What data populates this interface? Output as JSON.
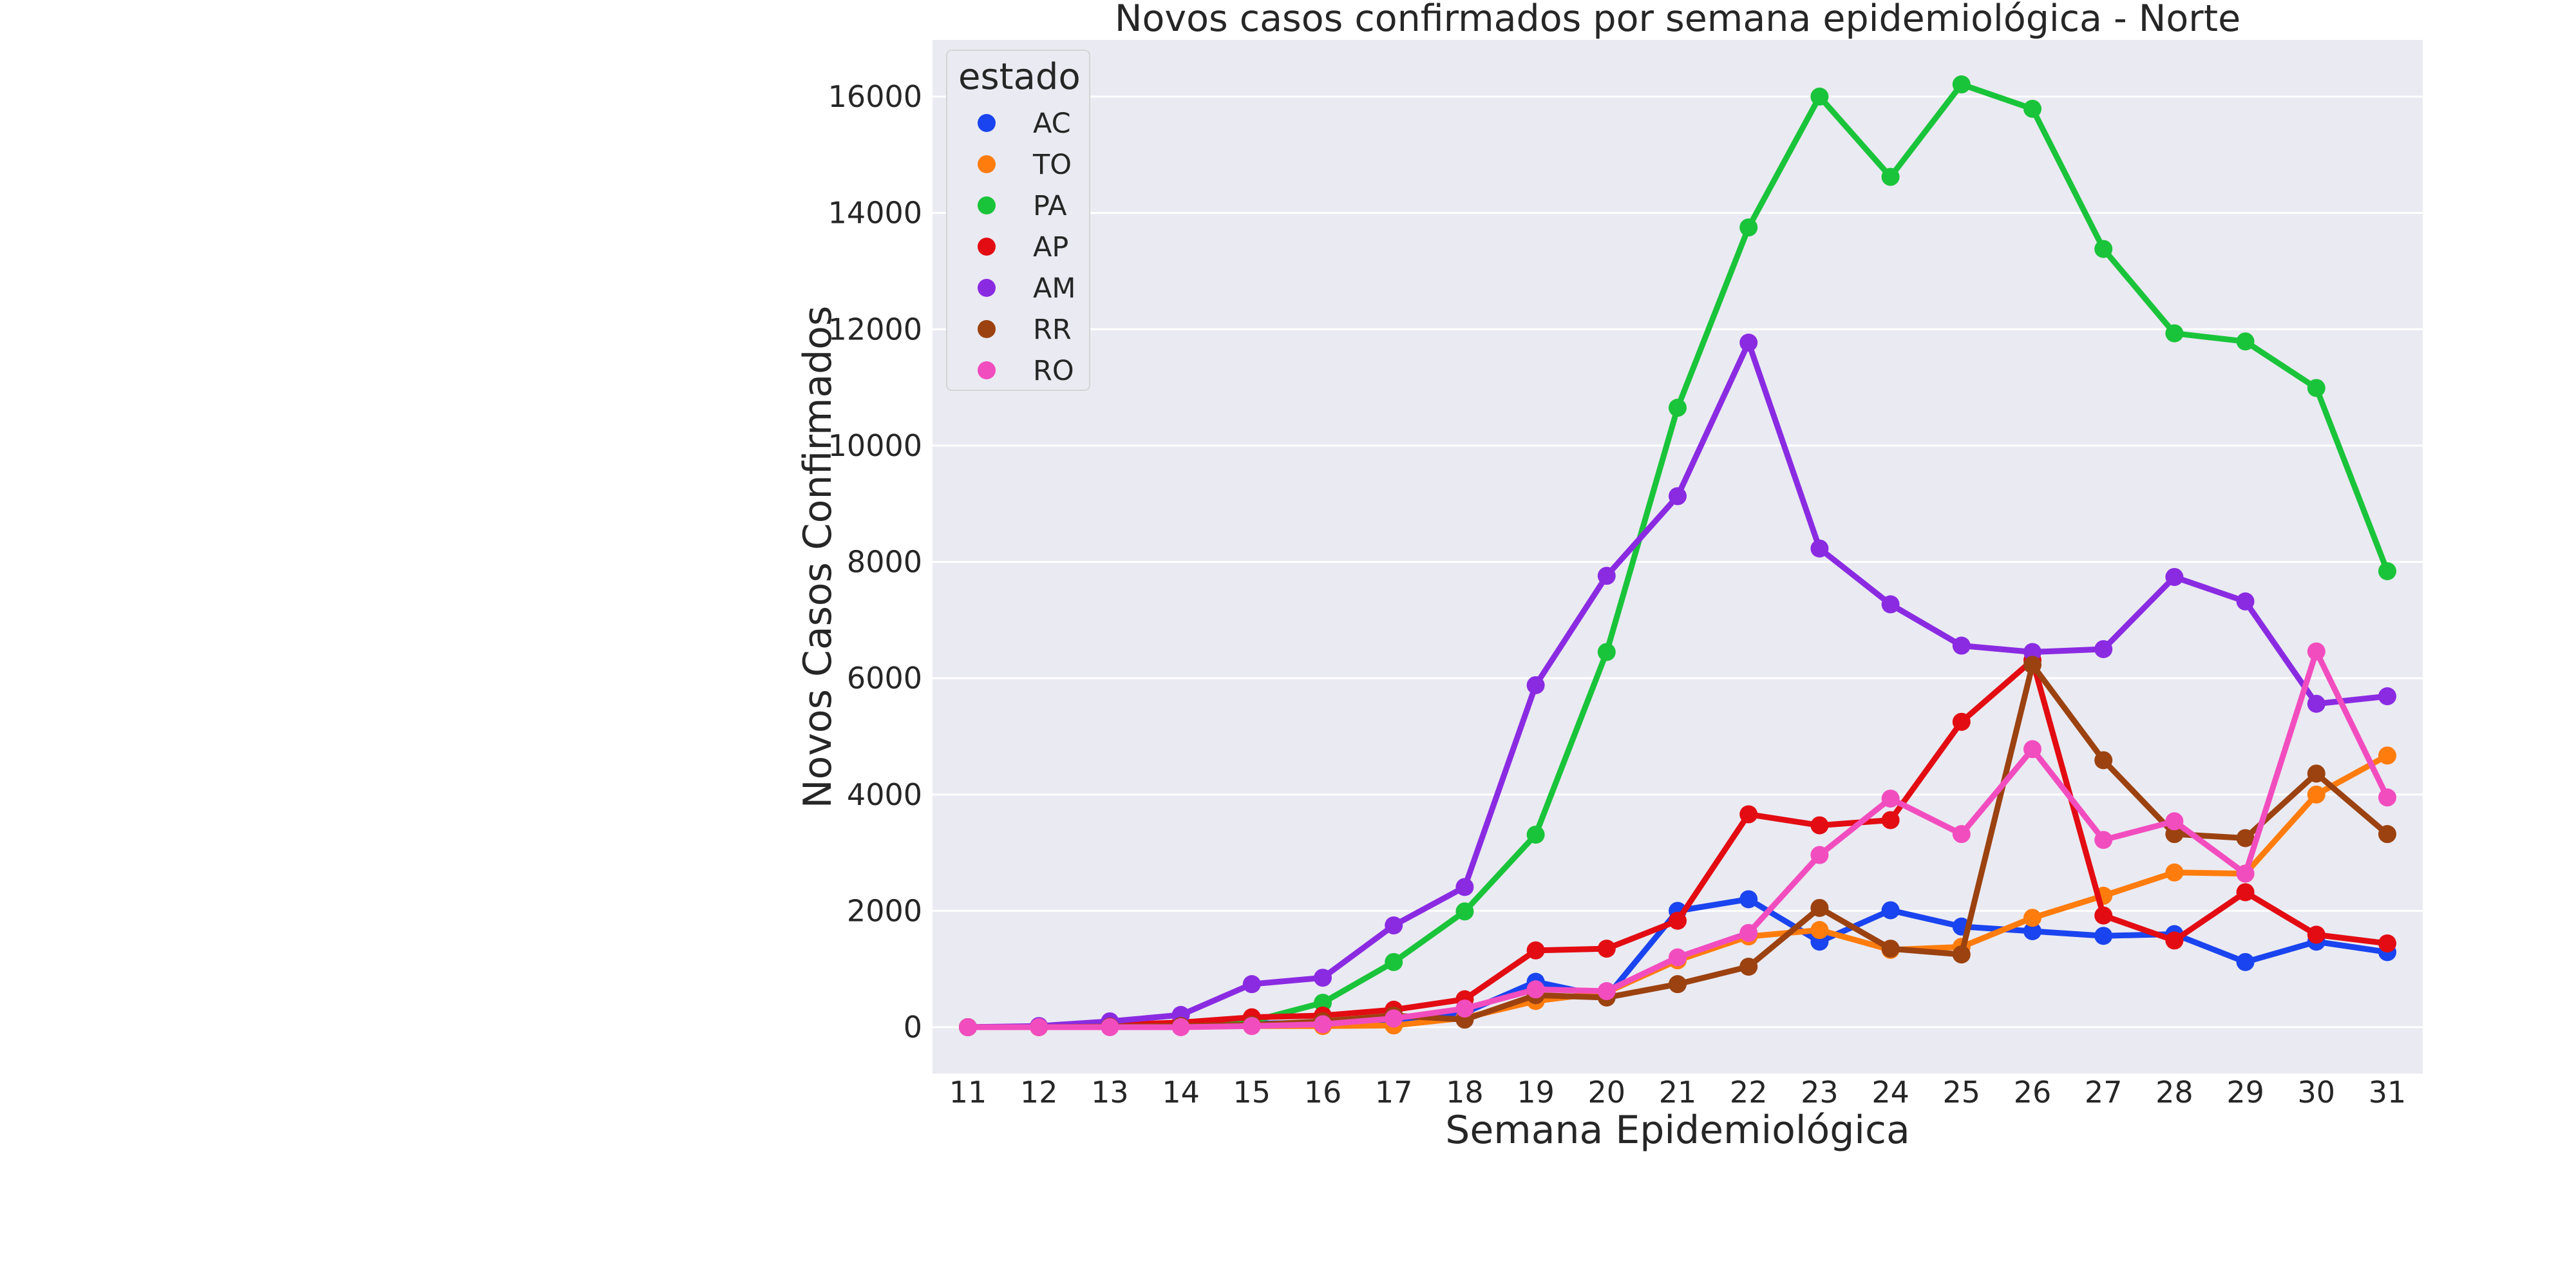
{
  "chart_data": {
    "type": "line",
    "title": "Novos casos confirmados por semana epidemiológica - Norte",
    "xlabel": "Semana Epidemiológica",
    "ylabel": "Novos Casos Confirmados",
    "categories": [
      "11",
      "12",
      "13",
      "14",
      "15",
      "16",
      "17",
      "18",
      "19",
      "20",
      "21",
      "22",
      "23",
      "24",
      "25",
      "26",
      "27",
      "28",
      "29",
      "30",
      "31"
    ],
    "yticks": [
      "0",
      "2000",
      "4000",
      "6000",
      "8000",
      "10000",
      "12000",
      "14000",
      "16000"
    ],
    "ylim": [
      -800,
      16800
    ],
    "grid": true,
    "legend": {
      "title": "estado",
      "placement": "top-left"
    },
    "series": [
      {
        "name": "AC",
        "color": "#1a44ef",
        "values": [
          0,
          5,
          20,
          40,
          60,
          80,
          100,
          250,
          780,
          520,
          2000,
          2200,
          1470,
          2010,
          1730,
          1650,
          1570,
          1600,
          1120,
          1470,
          1290
        ]
      },
      {
        "name": "TO",
        "color": "#ff7c0d",
        "values": [
          0,
          0,
          10,
          20,
          20,
          20,
          30,
          160,
          450,
          600,
          1150,
          1560,
          1670,
          1330,
          1380,
          1880,
          2260,
          2660,
          2640,
          4000,
          4670
        ]
      },
      {
        "name": "PA",
        "color": "#1ac43a",
        "values": [
          0,
          10,
          40,
          50,
          100,
          420,
          1120,
          1990,
          3310,
          6450,
          10650,
          13750,
          16000,
          14620,
          16210,
          15790,
          13380,
          11930,
          11790,
          10990,
          7840
        ]
      },
      {
        "name": "AP",
        "color": "#e20c12",
        "values": [
          0,
          10,
          40,
          80,
          170,
          200,
          300,
          480,
          1320,
          1350,
          1830,
          3660,
          3470,
          3560,
          5250,
          6310,
          1920,
          1490,
          2320,
          1590,
          1440
        ]
      },
      {
        "name": "AM",
        "color": "#8a2be2",
        "values": [
          0,
          20,
          100,
          210,
          740,
          850,
          1750,
          2410,
          5880,
          7760,
          9130,
          11770,
          8230,
          7270,
          6560,
          6450,
          6500,
          7740,
          7320,
          5560,
          5690
        ]
      },
      {
        "name": "RR",
        "color": "#9b4210",
        "values": [
          0,
          0,
          10,
          20,
          40,
          100,
          200,
          130,
          550,
          510,
          740,
          1040,
          2050,
          1350,
          1250,
          6230,
          4590,
          3320,
          3250,
          4360,
          3320
        ]
      },
      {
        "name": "RO",
        "color": "#f24dbf",
        "values": [
          0,
          0,
          0,
          0,
          20,
          50,
          150,
          320,
          650,
          620,
          1200,
          1620,
          2960,
          3930,
          3320,
          4780,
          3220,
          3540,
          2640,
          6460,
          3950
        ]
      }
    ]
  }
}
